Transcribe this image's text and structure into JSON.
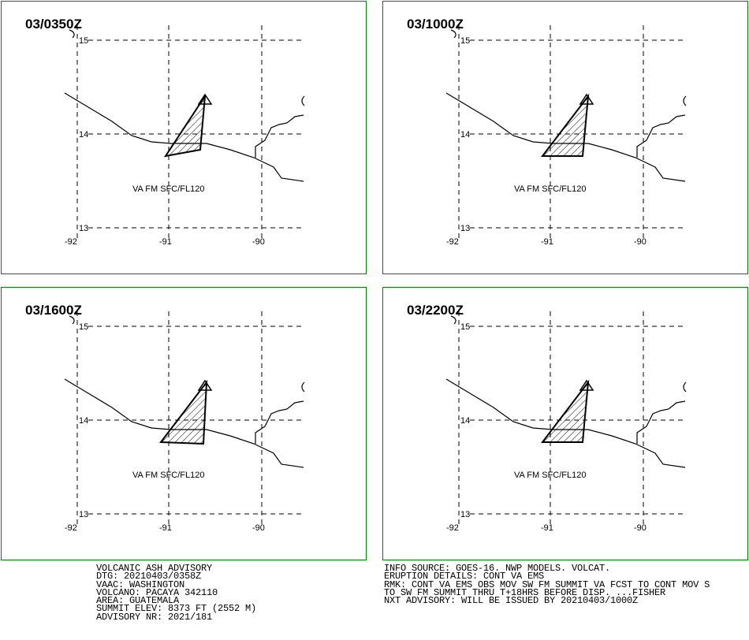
{
  "map": {
    "lat_labels": [
      "15",
      "14",
      "13"
    ],
    "lon_labels": [
      "-92",
      "-91",
      "-90"
    ],
    "volcano_symbol": "triangle-volcano-icon",
    "panels": [
      {
        "time": "03/0350Z",
        "label": "VA FM SFC/FL120"
      },
      {
        "time": "03/1000Z",
        "label": "VA FM SFC/FL120"
      },
      {
        "time": "03/1600Z",
        "label": "VA FM SFC/FL120"
      },
      {
        "time": "03/2200Z",
        "label": "VA FM SFC/FL120"
      }
    ],
    "colors": {
      "panel_border": "#008000",
      "lines": "#000000"
    }
  },
  "advisory": {
    "left": [
      "VOLCANIC ASH ADVISORY",
      "DTG: 20210403/0358Z",
      "VAAC: WASHINGTON",
      "VOLCANO: PACAYA 342110",
      "AREA: GUATEMALA",
      "SUMMIT ELEV: 8373 FT (2552 M)",
      "ADVISORY NR: 2021/181"
    ],
    "right": [
      "INFO SOURCE: GOES-16. NWP MODELS. VOLCAT.",
      "ERUPTION DETAILS: CONT VA EMS",
      "RMK: CONT VA EMS OBS MOV SW FM SUMMIT VA FCST TO CONT MOV S",
      "TO SW FM SUMMIT THRU T+18HRS BEFORE DISP. ...FISHER",
      "NXT ADVISORY: WILL BE ISSUED BY 20210403/1000Z"
    ]
  }
}
